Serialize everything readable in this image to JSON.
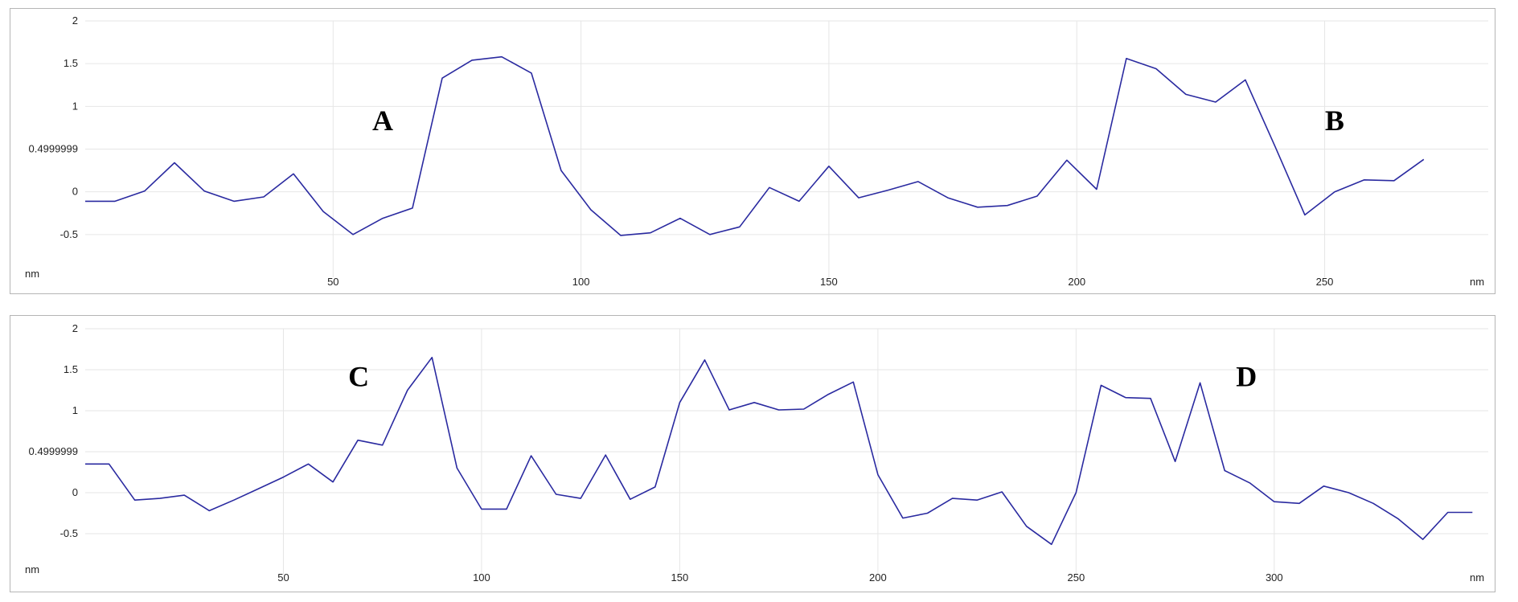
{
  "colors": {
    "line": "#2a2aa0",
    "grid": "#e6e6e6",
    "frame": "#b5b5b5"
  },
  "chart_data": [
    {
      "type": "line",
      "xlabel": "nm",
      "ylabel": "nm",
      "xlim": [
        0,
        283
      ],
      "ylim": [
        -1.0,
        2.0
      ],
      "grid": true,
      "x_ticks": [
        50,
        100,
        150,
        200,
        250
      ],
      "y_ticks": [
        {
          "value": 2,
          "label": "2"
        },
        {
          "value": 1.5,
          "label": "1.5"
        },
        {
          "value": 1,
          "label": "1"
        },
        {
          "value": 0.4999999,
          "label": "0.4999999"
        },
        {
          "value": 0,
          "label": "0"
        },
        {
          "value": -0.5,
          "label": "-0.5"
        }
      ],
      "annotations": [
        {
          "text": "A",
          "x": 60,
          "y": 0.72
        },
        {
          "text": "B",
          "x": 252,
          "y": 0.72
        }
      ],
      "series": [
        {
          "x": [
            0,
            6,
            12,
            18,
            24,
            30,
            36,
            42,
            48,
            54,
            60,
            66,
            72,
            78,
            84,
            90,
            96,
            102,
            108,
            114,
            120,
            126,
            132,
            138,
            144,
            150,
            156,
            162,
            168,
            174,
            180,
            186,
            192,
            198,
            204,
            210,
            216,
            222,
            228,
            234,
            240,
            246,
            252,
            258,
            264,
            270
          ],
          "y": [
            -0.11,
            -0.11,
            0.01,
            0.34,
            0.01,
            -0.11,
            -0.06,
            0.21,
            -0.23,
            -0.5,
            -0.31,
            -0.19,
            1.33,
            1.54,
            1.58,
            1.39,
            0.25,
            -0.21,
            -0.51,
            -0.48,
            -0.31,
            -0.5,
            -0.41,
            0.05,
            -0.11,
            0.3,
            -0.07,
            0.02,
            0.12,
            -0.07,
            -0.18,
            -0.16,
            -0.05,
            0.37,
            0.03,
            1.56,
            1.44,
            1.14,
            1.05,
            1.31,
            0.53,
            -0.27,
            0.0,
            0.14,
            0.13,
            0.38
          ]
        }
      ]
    },
    {
      "type": "line",
      "xlabel": "nm",
      "ylabel": "nm",
      "xlim": [
        0,
        354
      ],
      "ylim": [
        -1.0,
        2.0
      ],
      "grid": true,
      "x_ticks": [
        50,
        100,
        150,
        200,
        250,
        300
      ],
      "y_ticks": [
        {
          "value": 2,
          "label": "2"
        },
        {
          "value": 1.5,
          "label": "1.5"
        },
        {
          "value": 1,
          "label": "1"
        },
        {
          "value": 0.4999999,
          "label": "0.4999999"
        },
        {
          "value": 0,
          "label": "0"
        },
        {
          "value": -0.5,
          "label": "-0.5"
        }
      ],
      "annotations": [
        {
          "text": "C",
          "x": 69,
          "y": 1.3
        },
        {
          "text": "D",
          "x": 293,
          "y": 1.3
        }
      ],
      "series": [
        {
          "x": [
            0,
            6,
            12.5,
            18.8,
            25,
            31.3,
            37.5,
            43.8,
            50,
            56.3,
            62.5,
            68.8,
            75,
            81.3,
            87.5,
            93.8,
            100,
            106.3,
            112.5,
            118.8,
            125,
            131.3,
            137.5,
            143.8,
            150,
            156.3,
            162.5,
            168.8,
            175,
            181.3,
            187.5,
            193.8,
            200,
            206.3,
            212.5,
            218.8,
            225,
            231.3,
            237.5,
            243.8,
            250,
            256.3,
            262.5,
            268.8,
            275,
            281.3,
            287.5,
            293.8,
            300,
            306.3,
            312.5,
            318.8,
            325,
            331.3,
            337.5,
            343.8,
            350
          ],
          "y": [
            0.35,
            0.35,
            -0.09,
            -0.07,
            -0.03,
            -0.22,
            -0.09,
            0.05,
            0.19,
            0.35,
            0.13,
            0.64,
            0.58,
            1.25,
            1.65,
            0.3,
            -0.2,
            -0.2,
            0.45,
            -0.02,
            -0.07,
            0.46,
            -0.08,
            0.07,
            1.1,
            1.62,
            1.01,
            1.1,
            1.01,
            1.02,
            1.2,
            1.35,
            0.22,
            -0.31,
            -0.25,
            -0.07,
            -0.09,
            0.01,
            -0.41,
            -0.63,
            0.0,
            1.31,
            1.16,
            1.15,
            0.38,
            1.34,
            0.27,
            0.12,
            -0.11,
            -0.13,
            0.08,
            0.0,
            -0.13,
            -0.32,
            -0.57,
            -0.24,
            -0.24
          ]
        }
      ]
    }
  ]
}
